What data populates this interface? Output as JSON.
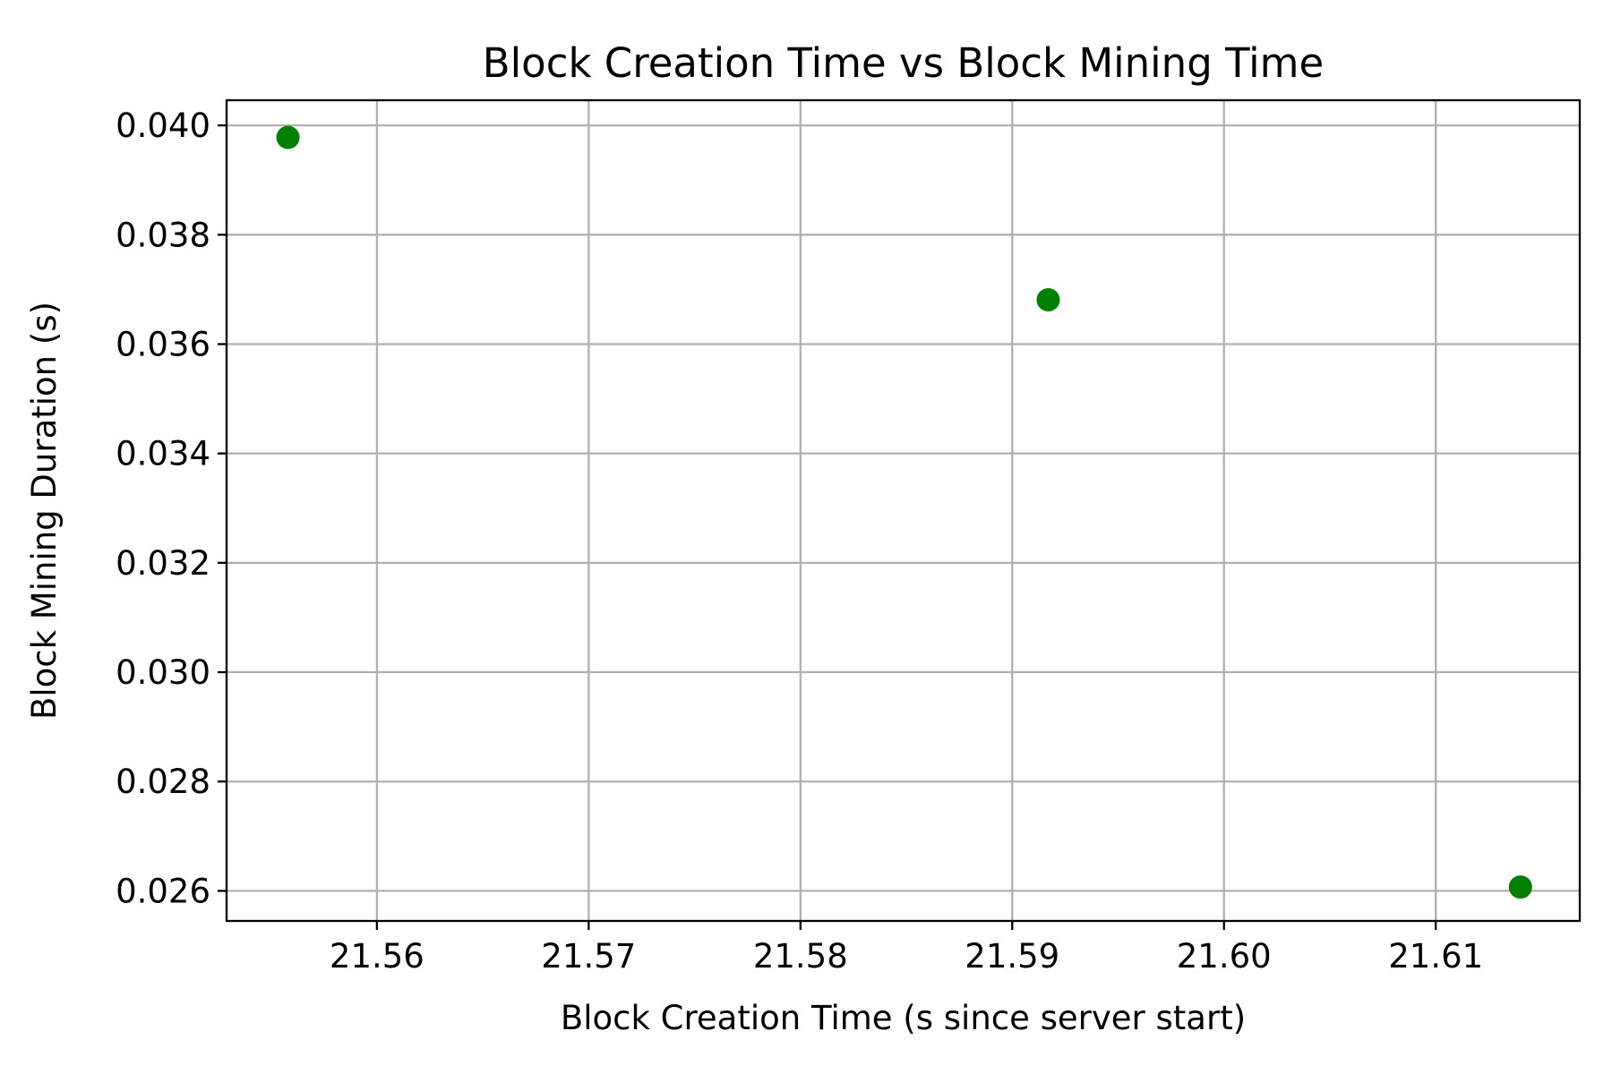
{
  "chart_data": {
    "type": "scatter",
    "title": "Block Creation Time vs Block Mining Time",
    "xlabel": "Block Creation Time (s since server start)",
    "ylabel": "Block Mining Duration (s)",
    "xlim": [
      21.5529,
      21.6168
    ],
    "ylim": [
      0.02545,
      0.04046
    ],
    "x_ticks": [
      21.56,
      21.57,
      21.58,
      21.59,
      21.6,
      21.61
    ],
    "x_tick_labels": [
      "21.56",
      "21.57",
      "21.58",
      "21.59",
      "21.60",
      "21.61"
    ],
    "y_ticks": [
      0.026,
      0.028,
      0.03,
      0.032,
      0.034,
      0.036,
      0.038,
      0.04
    ],
    "y_tick_labels": [
      "0.026",
      "0.028",
      "0.030",
      "0.032",
      "0.034",
      "0.036",
      "0.038",
      "0.040"
    ],
    "grid": true,
    "series": [
      {
        "color": "#008000",
        "points": [
          {
            "x": 21.5558,
            "y": 0.03978
          },
          {
            "x": 21.5917,
            "y": 0.03681
          },
          {
            "x": 21.614,
            "y": 0.02607
          }
        ]
      }
    ]
  }
}
